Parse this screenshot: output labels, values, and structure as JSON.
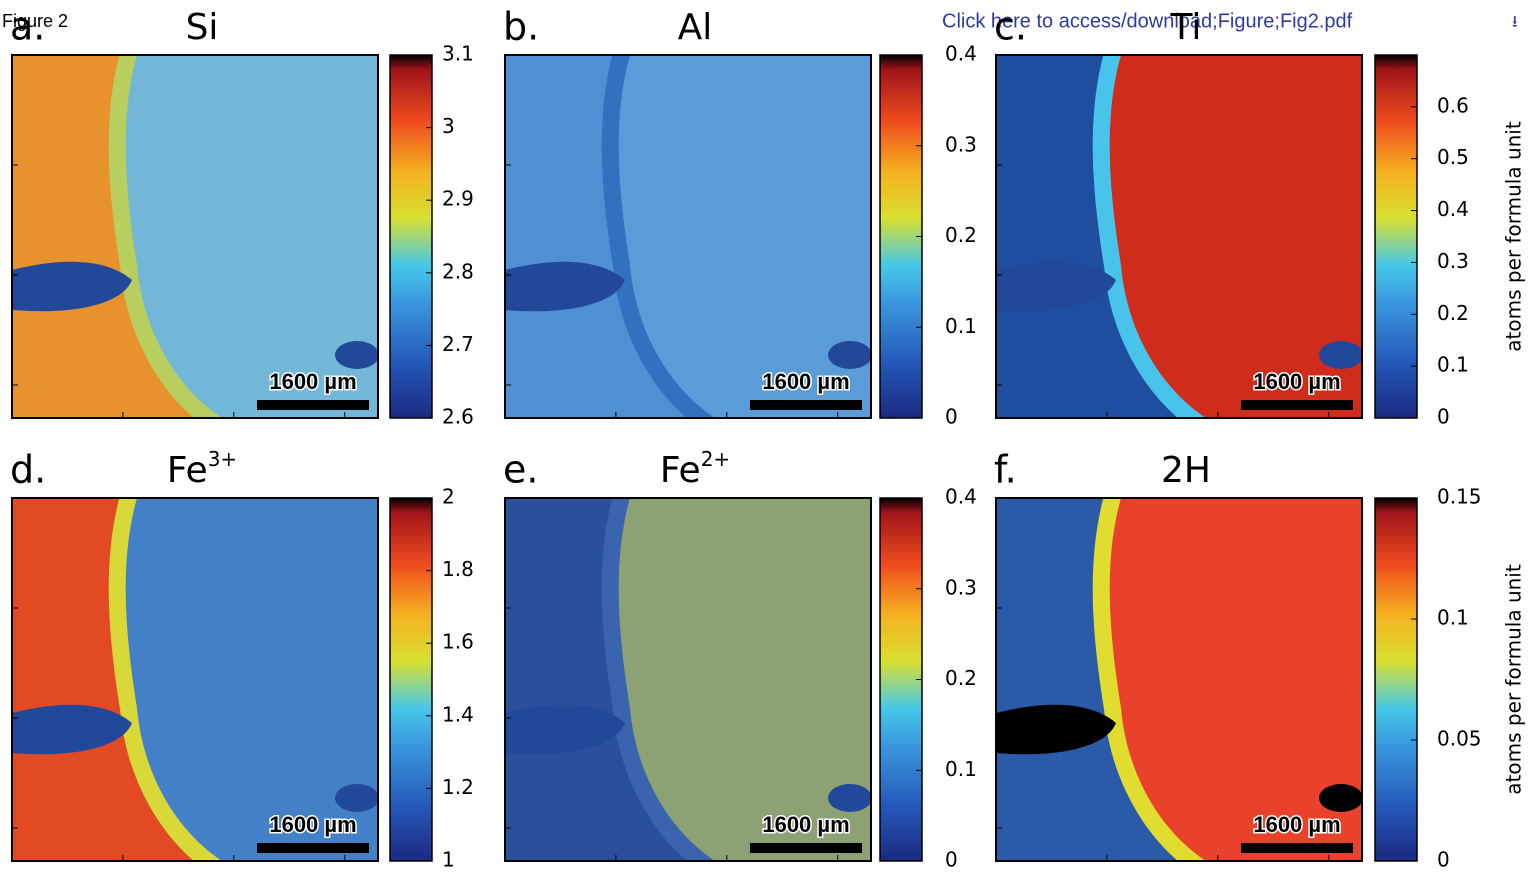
{
  "header": {
    "figure_label": "Figure 2",
    "link": "Click here to access/download;Figure;Fig2.pdf"
  },
  "chart_data": [
    {
      "type": "map",
      "panel": "a.",
      "title": "Si",
      "clim": [
        2.6,
        3.1
      ],
      "cticks": [
        2.6,
        2.7,
        2.8,
        2.9,
        3,
        3.1
      ],
      "scale_bar": "1600 µm"
    },
    {
      "type": "map",
      "panel": "b.",
      "title": "Al",
      "clim": [
        0,
        0.4
      ],
      "cticks": [
        0,
        0.1,
        0.2,
        0.3,
        0.4
      ],
      "scale_bar": "1600 µm"
    },
    {
      "type": "map",
      "panel": "c.",
      "title": "Ti",
      "clim": [
        0,
        0.7
      ],
      "cticks": [
        0,
        0.1,
        0.2,
        0.3,
        0.4,
        0.5,
        0.6
      ],
      "scale_bar": "1600 µm",
      "colorbar_label": "atoms per formula unit"
    },
    {
      "type": "map",
      "panel": "d.",
      "title": "Fe",
      "title_superscript": "3+",
      "clim": [
        1,
        2
      ],
      "cticks": [
        1,
        1.2,
        1.4,
        1.6,
        1.8,
        2
      ],
      "scale_bar": "1600 µm"
    },
    {
      "type": "map",
      "panel": "e.",
      "title": "Fe",
      "title_superscript": "2+",
      "clim": [
        0,
        0.4
      ],
      "cticks": [
        0,
        0.1,
        0.2,
        0.3,
        0.4
      ],
      "scale_bar": "1600 µm"
    },
    {
      "type": "map",
      "panel": "f.",
      "title": "2H",
      "clim": [
        0,
        0.15
      ],
      "cticks": [
        0,
        0.05,
        0.1,
        0.15
      ],
      "scale_bar": "1600 µm",
      "colorbar_label": "atoms per formula unit"
    }
  ]
}
